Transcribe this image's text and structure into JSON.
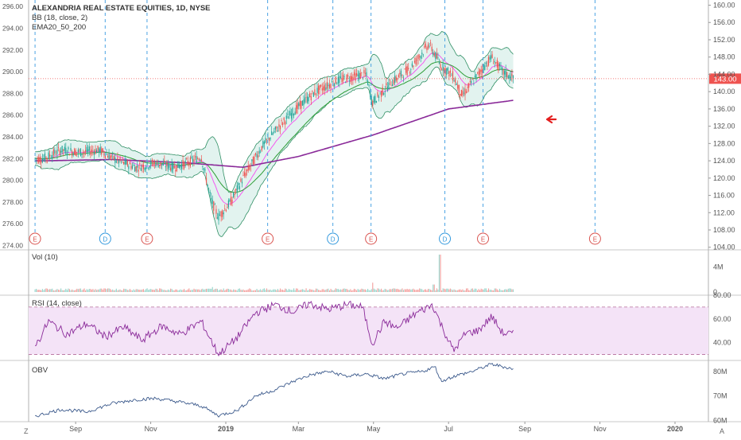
{
  "colors": {
    "up": "#26a69a",
    "down": "#ef5350",
    "bb": "#2f8f64",
    "bb_fill": "#e2f3ef",
    "ema20": "#f45bf0",
    "ema50": "#2e9e37",
    "ema200": "#8a2a99",
    "rsi": "#8a2a99",
    "rsi_band": "#f4e3f7",
    "obv": "#3c5a8c",
    "earnings": "#d9534f",
    "dividend": "#3399dd",
    "event_line": "#4ba3e3",
    "price_line": "#ef5350",
    "arrow": "#e41e1e"
  },
  "legend": {
    "title": "ALEXANDRIA REAL ESTATE EQUITIES, 1D, NYSE",
    "bb": "BB (18, close, 2)",
    "ema": "EMA20_50_200",
    "vol": "Vol (10)",
    "rsi": "RSI (14, close)",
    "obv": "OBV"
  },
  "footer": {
    "left": "Z",
    "right": "A"
  },
  "price_label": "143.00",
  "chart_data": [
    {
      "type": "candlestick",
      "name": "price",
      "title": "ALEXANDRIA REAL ESTATE EQUITIES, 1D, NYSE",
      "left_ticks": [
        "296.00",
        "294.00",
        "292.00",
        "290.00",
        "288.00",
        "286.00",
        "284.00",
        "282.00",
        "280.00",
        "278.00",
        "276.00",
        "274.00"
      ],
      "left_range": [
        273.6,
        296.6
      ],
      "right_ticks": [
        "160.00",
        "156.00",
        "152.00",
        "148.00",
        "144.00",
        "140.00",
        "136.00",
        "132.00",
        "128.00",
        "124.00",
        "120.00",
        "116.00",
        "112.00",
        "108.00",
        "104.00"
      ],
      "right_range": [
        103.4,
        161.2
      ],
      "x_ticks": [
        "Sep",
        "Nov",
        "2019",
        "Mar",
        "May",
        "Jul",
        "Sep",
        "Nov",
        "2020"
      ],
      "last_price": 143.0,
      "close_points": [
        [
          "2018-08-06",
          124.5
        ],
        [
          "2018-08-20",
          126.5
        ],
        [
          "2018-09-05",
          126.0
        ],
        [
          "2018-09-20",
          126.5
        ],
        [
          "2018-10-05",
          124.0
        ],
        [
          "2018-10-20",
          122.5
        ],
        [
          "2018-11-05",
          123.5
        ],
        [
          "2018-11-20",
          122.5
        ],
        [
          "2018-12-05",
          124.0
        ],
        [
          "2018-12-12",
          125.0
        ],
        [
          "2018-12-20",
          115.0
        ],
        [
          "2018-12-26",
          111.0
        ],
        [
          "2019-01-05",
          114.5
        ],
        [
          "2019-01-15",
          120.0
        ],
        [
          "2019-01-31",
          127.5
        ],
        [
          "2019-02-15",
          132.5
        ],
        [
          "2019-03-01",
          136.5
        ],
        [
          "2019-03-15",
          140.0
        ],
        [
          "2019-04-01",
          142.5
        ],
        [
          "2019-04-15",
          143.5
        ],
        [
          "2019-04-25",
          144.0
        ],
        [
          "2019-04-30",
          137.5
        ],
        [
          "2019-05-15",
          142.0
        ],
        [
          "2019-05-31",
          145.5
        ],
        [
          "2019-06-15",
          151.0
        ],
        [
          "2019-06-25",
          146.0
        ],
        [
          "2019-07-05",
          143.5
        ],
        [
          "2019-07-12",
          139.0
        ],
        [
          "2019-07-25",
          144.0
        ],
        [
          "2019-08-05",
          148.0
        ],
        [
          "2019-08-14",
          144.5
        ],
        [
          "2019-08-23",
          143.0
        ]
      ],
      "ema200_points": [
        [
          "2018-08-06",
          124.0
        ],
        [
          "2018-10-01",
          124.3
        ],
        [
          "2018-12-01",
          123.5
        ],
        [
          "2019-01-15",
          122.5
        ],
        [
          "2019-03-01",
          125.0
        ],
        [
          "2019-05-01",
          130.0
        ],
        [
          "2019-07-01",
          136.0
        ],
        [
          "2019-08-23",
          138.0
        ]
      ],
      "events": [
        {
          "date": "2018-07-30",
          "label": "E"
        },
        {
          "date": "2018-09-25",
          "label": "D"
        },
        {
          "date": "2018-10-29",
          "label": "E"
        },
        {
          "date": "2019-02-04",
          "label": "E"
        },
        {
          "date": "2019-03-29",
          "label": "D"
        },
        {
          "date": "2019-04-29",
          "label": "E"
        },
        {
          "date": "2019-06-28",
          "label": "D"
        },
        {
          "date": "2019-07-29",
          "label": "E"
        },
        {
          "date": "2019-10-28",
          "label": "E"
        }
      ]
    },
    {
      "type": "bar",
      "name": "volume",
      "title": "Vol (10)",
      "y_ticks": [
        "4M",
        "0"
      ],
      "y_range": [
        0,
        6000000
      ],
      "baseline": 400000,
      "spikes": [
        [
          "2018-12-21",
          800000
        ],
        [
          "2019-04-30",
          1500000
        ],
        [
          "2019-06-24",
          6000000
        ],
        [
          "2019-06-19",
          1200000
        ]
      ]
    },
    {
      "type": "line",
      "name": "rsi",
      "title": "RSI (14, close)",
      "y_ticks": [
        "80.00",
        "60.00",
        "40.00"
      ],
      "y_range": [
        25,
        80
      ],
      "bands": [
        70,
        30
      ],
      "points": [
        [
          "2018-08-01",
          40
        ],
        [
          "2018-08-10",
          58
        ],
        [
          "2018-08-25",
          47
        ],
        [
          "2018-09-10",
          56
        ],
        [
          "2018-09-25",
          45
        ],
        [
          "2018-10-10",
          53
        ],
        [
          "2018-10-25",
          42
        ],
        [
          "2018-11-10",
          54
        ],
        [
          "2018-11-25",
          47
        ],
        [
          "2018-12-12",
          58
        ],
        [
          "2018-12-26",
          30
        ],
        [
          "2019-01-10",
          44
        ],
        [
          "2019-01-25",
          65
        ],
        [
          "2019-02-10",
          72
        ],
        [
          "2019-02-25",
          66
        ],
        [
          "2019-03-10",
          73
        ],
        [
          "2019-03-25",
          68
        ],
        [
          "2019-04-10",
          72
        ],
        [
          "2019-04-22",
          70
        ],
        [
          "2019-04-30",
          39
        ],
        [
          "2019-05-10",
          58
        ],
        [
          "2019-05-20",
          52
        ],
        [
          "2019-06-05",
          65
        ],
        [
          "2019-06-18",
          72
        ],
        [
          "2019-06-25",
          55
        ],
        [
          "2019-07-05",
          33
        ],
        [
          "2019-07-15",
          48
        ],
        [
          "2019-07-25",
          50
        ],
        [
          "2019-08-05",
          62
        ],
        [
          "2019-08-14",
          48
        ],
        [
          "2019-08-23",
          47
        ]
      ]
    },
    {
      "type": "line",
      "name": "obv",
      "title": "OBV",
      "y_ticks": [
        "80M",
        "70M",
        "60M"
      ],
      "y_range": [
        59.5,
        84.5
      ],
      "points": [
        [
          "2018-08-01",
          62
        ],
        [
          "2018-08-20",
          64.5
        ],
        [
          "2018-09-10",
          63.5
        ],
        [
          "2018-10-01",
          67
        ],
        [
          "2018-10-20",
          68.5
        ],
        [
          "2018-11-05",
          69
        ],
        [
          "2018-11-25",
          67.5
        ],
        [
          "2018-12-12",
          66
        ],
        [
          "2018-12-26",
          62
        ],
        [
          "2019-01-10",
          64
        ],
        [
          "2019-01-25",
          70
        ],
        [
          "2019-02-10",
          72.5
        ],
        [
          "2019-02-25",
          76
        ],
        [
          "2019-03-10",
          78.5
        ],
        [
          "2019-03-25",
          80
        ],
        [
          "2019-04-10",
          78
        ],
        [
          "2019-04-25",
          79
        ],
        [
          "2019-05-10",
          77
        ],
        [
          "2019-05-25",
          79
        ],
        [
          "2019-06-10",
          80
        ],
        [
          "2019-06-20",
          82
        ],
        [
          "2019-06-25",
          76
        ],
        [
          "2019-07-05",
          78
        ],
        [
          "2019-07-20",
          80
        ],
        [
          "2019-08-05",
          83
        ],
        [
          "2019-08-23",
          81
        ]
      ]
    }
  ]
}
